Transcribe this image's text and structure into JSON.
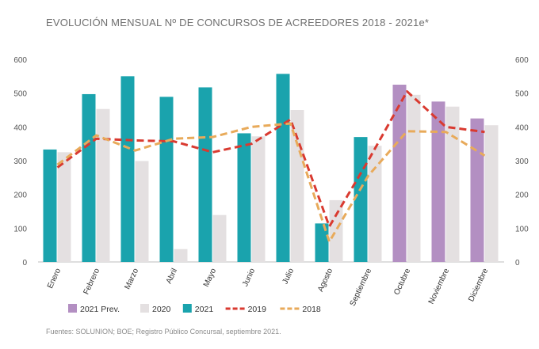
{
  "title": "EVOLUCIÓN MENSUAL Nº DE CONCURSOS DE ACREEDORES 2018 - 2021e*",
  "source": "Fuentes: SOLUNION; BOE; Registro Público Concursal, septiembre 2021.",
  "colors": {
    "prev2021": "#b38fc2",
    "y2020": "#e4e0e1",
    "y2021": "#1aa3ad",
    "y2019": "#d93a30",
    "y2018": "#e8aa5a"
  },
  "chart_data": {
    "type": "bar",
    "title": "EVOLUCIÓN MENSUAL Nº DE CONCURSOS DE ACREEDORES 2018 - 2021e*",
    "categories": [
      "Enero",
      "Febrero",
      "Marzo",
      "Abril",
      "Mayo",
      "Junio",
      "Julio",
      "Agosto",
      "Septiembre",
      "Octubre",
      "Noviembre",
      "Diciembre"
    ],
    "ylim": [
      0,
      600
    ],
    "yticks": [
      "0",
      "100",
      "200",
      "300",
      "400",
      "500",
      "600"
    ],
    "legend_position": "bottom-left",
    "grid": false,
    "bar_series": [
      {
        "name": "2021 Prev.",
        "color_key": "prev2021",
        "slot": 0,
        "values": [
          null,
          null,
          null,
          null,
          null,
          null,
          null,
          null,
          null,
          525,
          475,
          425
        ]
      },
      {
        "name": "2021",
        "color_key": "y2021",
        "slot": 0,
        "values": [
          333,
          497,
          550,
          489,
          517,
          381,
          557,
          114,
          370,
          null,
          null,
          null
        ]
      },
      {
        "name": "2020",
        "color_key": "y2020",
        "slot": 1,
        "values": [
          325,
          453,
          299,
          38,
          139,
          372,
          450,
          183,
          344,
          495,
          460,
          405
        ]
      }
    ],
    "line_series": [
      {
        "name": "2019",
        "color_key": "y2019",
        "values": [
          280,
          365,
          360,
          357,
          325,
          350,
          422,
          105,
          300,
          505,
          400,
          385
        ]
      },
      {
        "name": "2018",
        "color_key": "y2018",
        "values": [
          288,
          375,
          330,
          365,
          370,
          400,
          410,
          60,
          255,
          387,
          385,
          315
        ]
      }
    ],
    "legend": [
      {
        "label": "2021 Prev.",
        "kind": "box",
        "color_key": "prev2021"
      },
      {
        "label": "2020",
        "kind": "box",
        "color_key": "y2020"
      },
      {
        "label": "2021",
        "kind": "box",
        "color_key": "y2021"
      },
      {
        "label": "2019",
        "kind": "dash",
        "color_key": "y2019"
      },
      {
        "label": "2018",
        "kind": "dash",
        "color_key": "y2018"
      }
    ]
  }
}
